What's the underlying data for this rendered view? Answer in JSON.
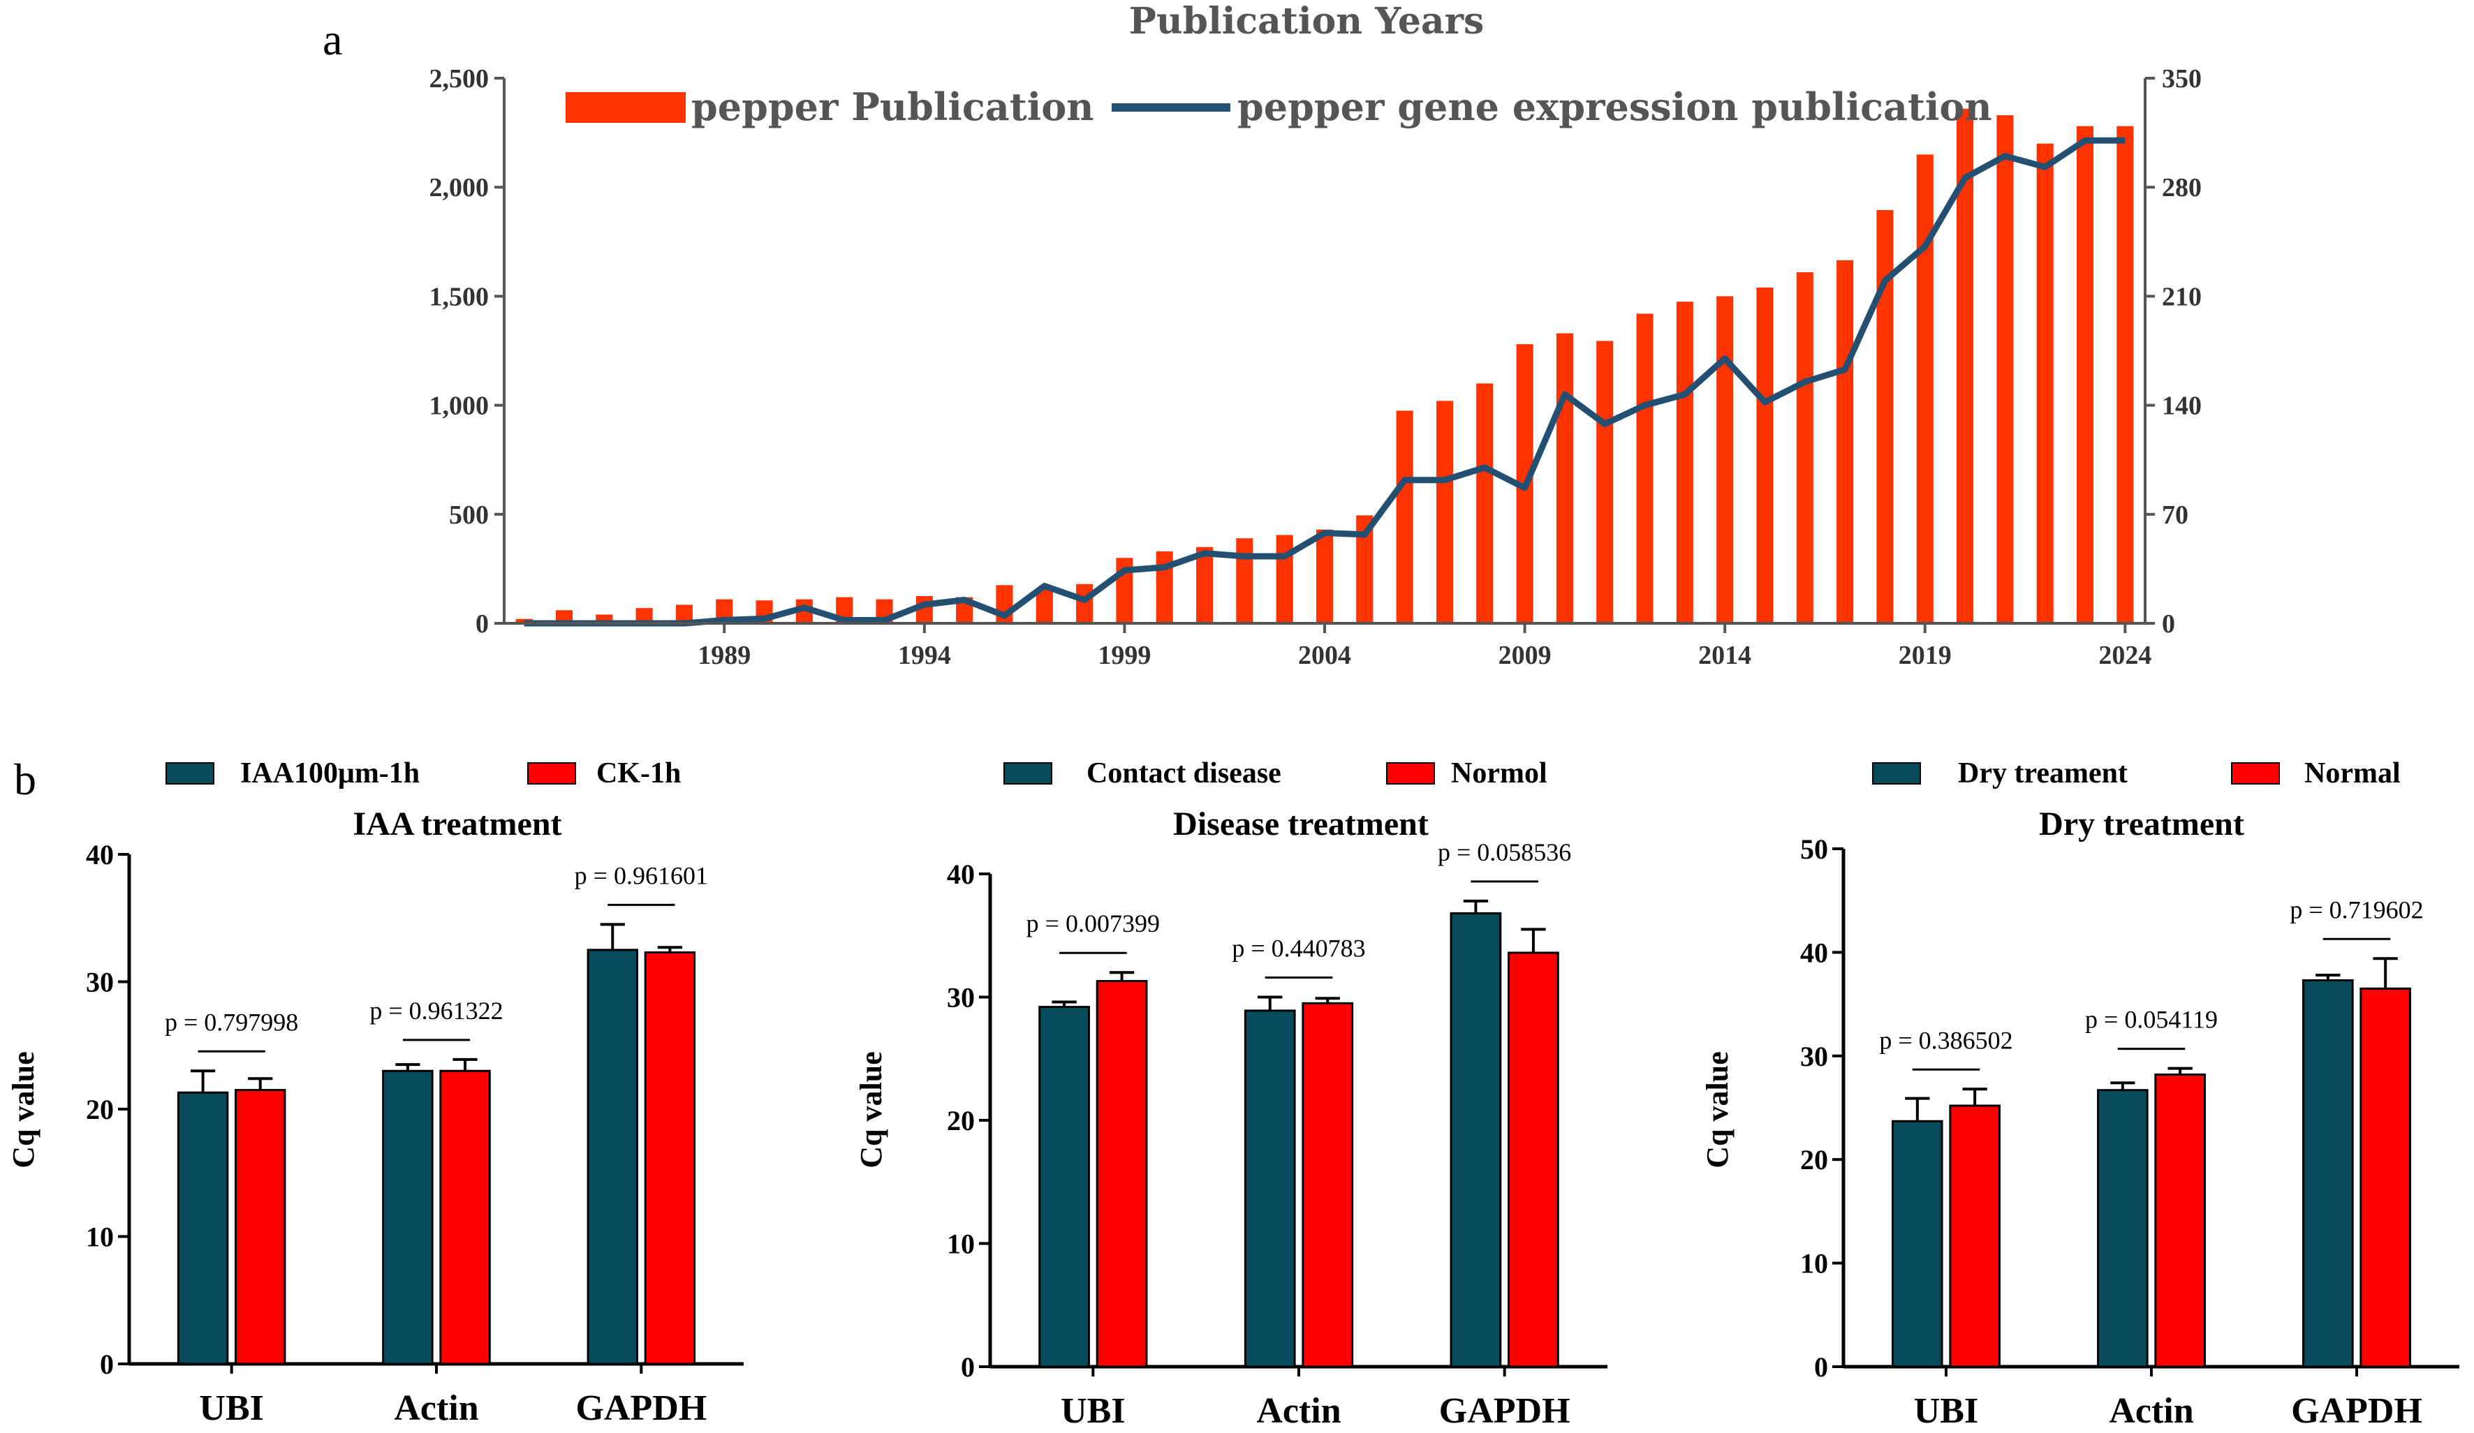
{
  "panel_a_label": "a",
  "panel_b_label": "b",
  "colors": {
    "red": "#ff3300",
    "navy": "#234f72",
    "teal": "#084b5c",
    "brightred": "#ff0000"
  },
  "chart_data": [
    {
      "type": "bar+line",
      "title": "Publication Years",
      "years": [
        1984,
        1985,
        1986,
        1987,
        1988,
        1989,
        1990,
        1991,
        1992,
        1993,
        1994,
        1995,
        1996,
        1997,
        1998,
        1999,
        2000,
        2001,
        2002,
        2003,
        2004,
        2005,
        2006,
        2007,
        2008,
        2009,
        2010,
        2011,
        2012,
        2013,
        2014,
        2015,
        2016,
        2017,
        2018,
        2019,
        2020,
        2021,
        2022,
        2023,
        2024
      ],
      "x_ticks": [
        "1989",
        "1994",
        "1999",
        "2004",
        "2009",
        "2014",
        "2019",
        "2024"
      ],
      "y_left_ticks": [
        "0",
        "500",
        "1,000",
        "1,500",
        "2,000",
        "2,500"
      ],
      "y_right_ticks": [
        "0",
        "70",
        "140",
        "210",
        "280",
        "350"
      ],
      "ylim_left": [
        0,
        2500
      ],
      "ylim_right": [
        0,
        350
      ],
      "series": [
        {
          "name": "pepper Publication",
          "axis": "left",
          "kind": "bar",
          "values": [
            20,
            60,
            40,
            70,
            85,
            110,
            105,
            110,
            120,
            110,
            125,
            120,
            175,
            155,
            180,
            300,
            330,
            350,
            390,
            405,
            430,
            495,
            975,
            1020,
            1100,
            1280,
            1330,
            1295,
            1420,
            1475,
            1500,
            1540,
            1610,
            1665,
            1895,
            2150,
            2360,
            2330,
            2200,
            2280,
            2280
          ]
        },
        {
          "name": "pepper gene expression publication",
          "axis": "right",
          "kind": "line",
          "values": [
            0,
            0,
            0,
            0,
            0,
            2,
            3,
            10,
            2,
            2,
            12,
            15,
            5,
            24,
            15,
            34,
            36,
            45,
            43,
            43,
            58,
            57,
            92,
            92,
            100,
            87,
            147,
            128,
            140,
            147,
            170,
            142,
            155,
            163,
            220,
            242,
            286,
            300,
            293,
            310,
            310
          ]
        }
      ]
    },
    {
      "type": "bar",
      "title": "IAA treatment",
      "ylabel": "Cq value",
      "ylim": [
        0,
        40
      ],
      "y_ticks": [
        "0",
        "10",
        "20",
        "30",
        "40"
      ],
      "categories": [
        "UBI",
        "Actin",
        "GAPDH"
      ],
      "series": [
        {
          "name": "IAA100μm-1h",
          "values": [
            21.3,
            23.0,
            32.5
          ],
          "errors": [
            1.7,
            0.5,
            2.0
          ]
        },
        {
          "name": "CK-1h",
          "values": [
            21.5,
            23.0,
            32.3
          ],
          "errors": [
            0.9,
            0.9,
            0.4
          ]
        }
      ],
      "p_values": [
        "p = 0.797998",
        "p = 0.961322",
        "p = 0.961601"
      ]
    },
    {
      "type": "bar",
      "title": "Disease treatment",
      "ylabel": "Cq value",
      "ylim": [
        0,
        40
      ],
      "y_ticks": [
        "0",
        "10",
        "20",
        "30",
        "40"
      ],
      "categories": [
        "UBI",
        "Actin",
        "GAPDH"
      ],
      "series": [
        {
          "name": "Contact disease",
          "values": [
            29.2,
            28.9,
            36.8
          ],
          "errors": [
            0.4,
            1.1,
            1.0
          ]
        },
        {
          "name": "Normol",
          "values": [
            31.3,
            29.5,
            33.6
          ],
          "errors": [
            0.7,
            0.4,
            1.9
          ]
        }
      ],
      "p_values": [
        "p = 0.007399",
        "p = 0.440783",
        "p = 0.058536"
      ]
    },
    {
      "type": "bar",
      "title": "Dry treatment",
      "ylabel": "Cq value",
      "ylim": [
        0,
        50
      ],
      "y_ticks": [
        "0",
        "10",
        "20",
        "30",
        "40",
        "50"
      ],
      "categories": [
        "UBI",
        "Actin",
        "GAPDH"
      ],
      "series": [
        {
          "name": "Dry treament",
          "values": [
            23.7,
            26.7,
            37.3
          ],
          "errors": [
            2.2,
            0.7,
            0.5
          ]
        },
        {
          "name": "Normal",
          "values": [
            25.2,
            28.2,
            36.5
          ],
          "errors": [
            1.6,
            0.6,
            2.9
          ]
        }
      ],
      "p_values": [
        "p = 0.386502",
        "p = 0.054119",
        "p = 0.719602"
      ]
    }
  ]
}
